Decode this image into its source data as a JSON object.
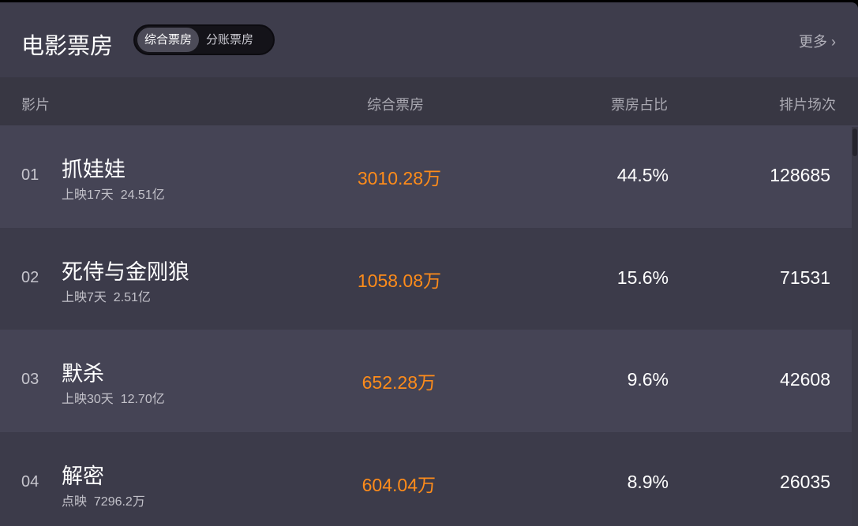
{
  "header": {
    "title": "电影票房",
    "tabs": [
      {
        "label": "综合票房",
        "active": true
      },
      {
        "label": "分账票房",
        "active": false
      }
    ],
    "more": "更多",
    "more_icon": "chevron-right-icon"
  },
  "columns": [
    "影片",
    "综合票房",
    "票房占比",
    "排片场次"
  ],
  "rows": [
    {
      "rank": "01",
      "name": "抓娃娃",
      "sub": "上映17天  24.51亿",
      "gross": "3010.28万",
      "ratio": "44.5%",
      "shows": "128685"
    },
    {
      "rank": "02",
      "name": "死侍与金刚狼",
      "sub": "上映7天  2.51亿",
      "gross": "1058.08万",
      "ratio": "15.6%",
      "shows": "71531"
    },
    {
      "rank": "03",
      "name": "默杀",
      "sub": "上映30天  12.70亿",
      "gross": "652.28万",
      "ratio": "9.6%",
      "shows": "42608"
    },
    {
      "rank": "04",
      "name": "解密",
      "sub": "点映  7296.2万",
      "gross": "604.04万",
      "ratio": "8.9%",
      "shows": "26035"
    }
  ],
  "colors": {
    "accent": "#ff8c1a",
    "background": "#3e3d4c"
  }
}
